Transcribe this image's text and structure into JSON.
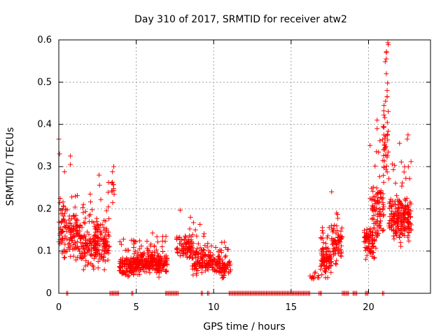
{
  "chart_data": {
    "type": "scatter",
    "title": "Day 310 of 2017, SRMTID for receiver atw2",
    "xlabel": "GPS time / hours",
    "ylabel": "SRMTID / TECUs",
    "xlim": [
      0,
      24
    ],
    "ylim": [
      0,
      0.6
    ],
    "xticks": [
      0,
      5,
      10,
      15,
      20
    ],
    "xtick_labels": [
      "0",
      "5",
      "10",
      "15",
      "20"
    ],
    "yticks": [
      0,
      0.1,
      0.2,
      0.3,
      0.4,
      0.5,
      0.6
    ],
    "ytick_labels": [
      "0",
      "0.1",
      "0.2",
      "0.3",
      "0.4",
      "0.5",
      "0.6"
    ],
    "grid": true,
    "marker": "+",
    "series": [
      {
        "name": "SRMTID",
        "color": "#ff0000",
        "clusters": [
          {
            "x_range": [
              0.0,
              0.55
            ],
            "y_base": 0.15,
            "y_spread": 0.09,
            "count": 60
          },
          {
            "x_range": [
              0.6,
              1.4
            ],
            "y_base": 0.14,
            "y_spread": 0.08,
            "count": 90
          },
          {
            "x_range": [
              1.4,
              2.4
            ],
            "y_base": 0.11,
            "y_spread": 0.07,
            "count": 110
          },
          {
            "x_range": [
              2.4,
              3.3
            ],
            "y_base": 0.12,
            "y_spread": 0.08,
            "count": 100
          },
          {
            "x_range": [
              3.4,
              3.6
            ],
            "y_base": 0.25,
            "y_spread": 0.05,
            "count": 10
          },
          {
            "x_range": [
              3.9,
              4.9
            ],
            "y_base": 0.065,
            "y_spread": 0.035,
            "count": 110
          },
          {
            "x_range": [
              4.9,
              6.2
            ],
            "y_base": 0.075,
            "y_spread": 0.04,
            "count": 150
          },
          {
            "x_range": [
              6.2,
              7.0
            ],
            "y_base": 0.07,
            "y_spread": 0.04,
            "count": 90
          },
          {
            "x_range": [
              7.6,
              8.6
            ],
            "y_base": 0.11,
            "y_spread": 0.05,
            "count": 80
          },
          {
            "x_range": [
              8.6,
              9.4
            ],
            "y_base": 0.08,
            "y_spread": 0.05,
            "count": 80
          },
          {
            "x_range": [
              9.4,
              10.4
            ],
            "y_base": 0.07,
            "y_spread": 0.035,
            "count": 90
          },
          {
            "x_range": [
              10.4,
              11.1
            ],
            "y_base": 0.06,
            "y_spread": 0.04,
            "count": 60
          },
          {
            "x_range": [
              16.2,
              16.8
            ],
            "y_base": 0.04,
            "y_spread": 0.02,
            "count": 12
          },
          {
            "x_range": [
              16.9,
              17.6
            ],
            "y_base": 0.08,
            "y_spread": 0.05,
            "count": 90
          },
          {
            "x_range": [
              17.6,
              18.3
            ],
            "y_base": 0.12,
            "y_spread": 0.07,
            "count": 70
          },
          {
            "x_range": [
              19.7,
              20.4
            ],
            "y_base": 0.12,
            "y_spread": 0.06,
            "count": 70
          },
          {
            "x_range": [
              20.2,
              21.0
            ],
            "y_base": 0.2,
            "y_spread": 0.1,
            "count": 90
          },
          {
            "x_range": [
              20.9,
              21.3
            ],
            "y_base": 0.35,
            "y_spread": 0.15,
            "count": 45
          },
          {
            "x_range": [
              21.3,
              22.8
            ],
            "y_base": 0.18,
            "y_spread": 0.08,
            "count": 200
          }
        ],
        "zero_runs": [
          [
            0.5,
            0.6
          ],
          [
            3.3,
            3.9
          ],
          [
            4.7,
            4.8
          ],
          [
            6.9,
            7.7
          ],
          [
            9.2,
            9.3
          ],
          [
            9.6,
            9.7
          ],
          [
            11.0,
            16.2
          ],
          [
            16.8,
            17.0
          ],
          [
            18.3,
            18.7
          ],
          [
            19.0,
            19.3
          ],
          [
            19.8,
            20.0
          ],
          [
            20.9,
            21.0
          ]
        ],
        "highlights": [
          {
            "x": 21.15,
            "y": 0.57
          },
          {
            "x": 21.15,
            "y": 0.555
          },
          {
            "x": 21.15,
            "y": 0.52
          },
          {
            "x": 21.2,
            "y": 0.48
          },
          {
            "x": 21.2,
            "y": 0.465
          },
          {
            "x": 21.1,
            "y": 0.455
          },
          {
            "x": 20.55,
            "y": 0.41
          },
          {
            "x": 20.55,
            "y": 0.39
          },
          {
            "x": 0.0,
            "y": 0.365
          },
          {
            "x": 0.05,
            "y": 0.33
          },
          {
            "x": 0.75,
            "y": 0.325
          },
          {
            "x": 0.75,
            "y": 0.305
          },
          {
            "x": 3.55,
            "y": 0.3
          },
          {
            "x": 2.6,
            "y": 0.28
          },
          {
            "x": 3.55,
            "y": 0.248
          },
          {
            "x": 22.55,
            "y": 0.375
          },
          {
            "x": 22.5,
            "y": 0.365
          },
          {
            "x": 20.1,
            "y": 0.35
          },
          {
            "x": 22.0,
            "y": 0.355
          },
          {
            "x": 8.5,
            "y": 0.18
          }
        ]
      }
    ]
  }
}
